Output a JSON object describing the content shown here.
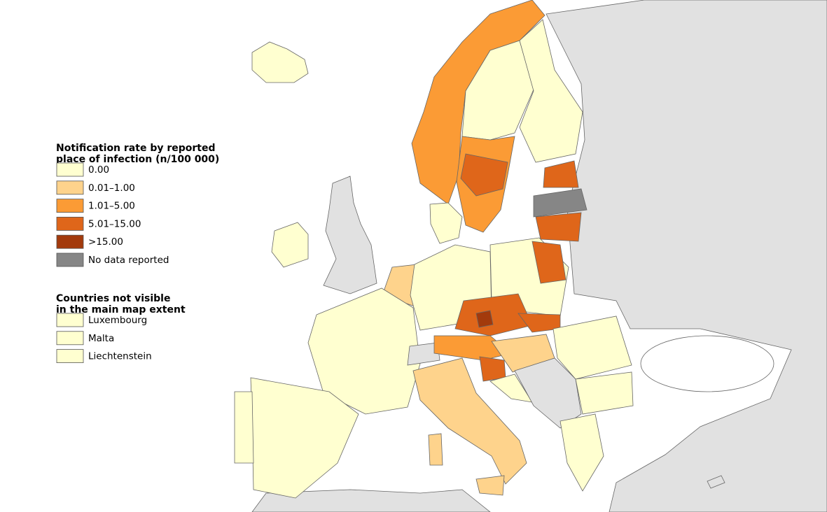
{
  "legend": {
    "title_lines": [
      "Notification rate by reported",
      "place of infection (n/100 000)"
    ],
    "items": [
      {
        "label": "0.00",
        "color": "#ffffd0"
      },
      {
        "label": "0.01–1.00",
        "color": "#fed38c"
      },
      {
        "label": "1.01–5.00",
        "color": "#fb9b35"
      },
      {
        "label": "5.01–15.00",
        "color": "#df661a"
      },
      {
        "label": ">15.00",
        "color": "#a33a0c"
      },
      {
        "label": "No data reported",
        "color": "#868686"
      }
    ]
  },
  "not_visible_legend": {
    "title_lines": [
      "Countries not visible",
      "in the main map extent"
    ],
    "items": [
      {
        "label": "Luxembourg",
        "color": "#ffffd0"
      },
      {
        "label": "Malta",
        "color": "#ffffd0"
      },
      {
        "label": "Liechtenstein",
        "color": "#ffffd0"
      }
    ]
  }
}
